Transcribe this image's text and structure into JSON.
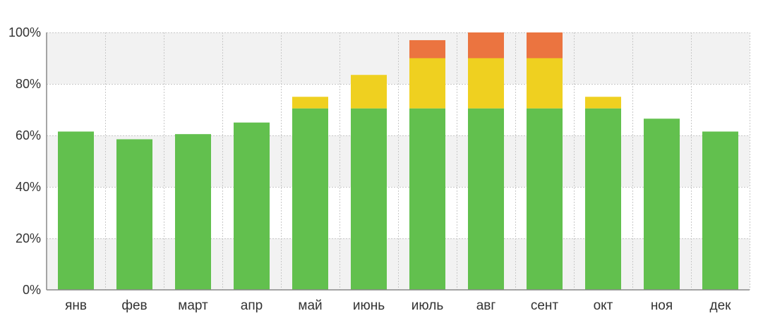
{
  "chart_data": {
    "type": "bar",
    "stacked": true,
    "title": "",
    "xlabel": "",
    "ylabel": "",
    "ylim": [
      0,
      100
    ],
    "y_ticks": [
      0,
      20,
      40,
      60,
      80,
      100
    ],
    "y_tick_labels": [
      "0%",
      "20%",
      "40%",
      "60%",
      "80%",
      "100%"
    ],
    "grid": true,
    "legend": "none",
    "categories": [
      "янв",
      "фев",
      "март",
      "апр",
      "май",
      "июнь",
      "июль",
      "авг",
      "сент",
      "окт",
      "ноя",
      "дек"
    ],
    "series": [
      {
        "color": "#62c04e",
        "values": [
          61.5,
          58.5,
          60.5,
          65,
          70.5,
          70.5,
          70.5,
          70.5,
          70.5,
          70.5,
          66.5,
          61.5
        ]
      },
      {
        "color": "#efd020",
        "values": [
          0,
          0,
          0,
          0,
          4.5,
          13,
          19.5,
          19.5,
          19.5,
          4.5,
          0,
          0
        ]
      },
      {
        "color": "#eb7440",
        "values": [
          0,
          0,
          0,
          0,
          0,
          0,
          7,
          10,
          10,
          0,
          0,
          0
        ]
      }
    ]
  },
  "colors": {
    "band_shaded": "#f2f2f2",
    "band_plain": "#ffffff",
    "grid": "#c8c8c8",
    "axis": "#888888"
  }
}
